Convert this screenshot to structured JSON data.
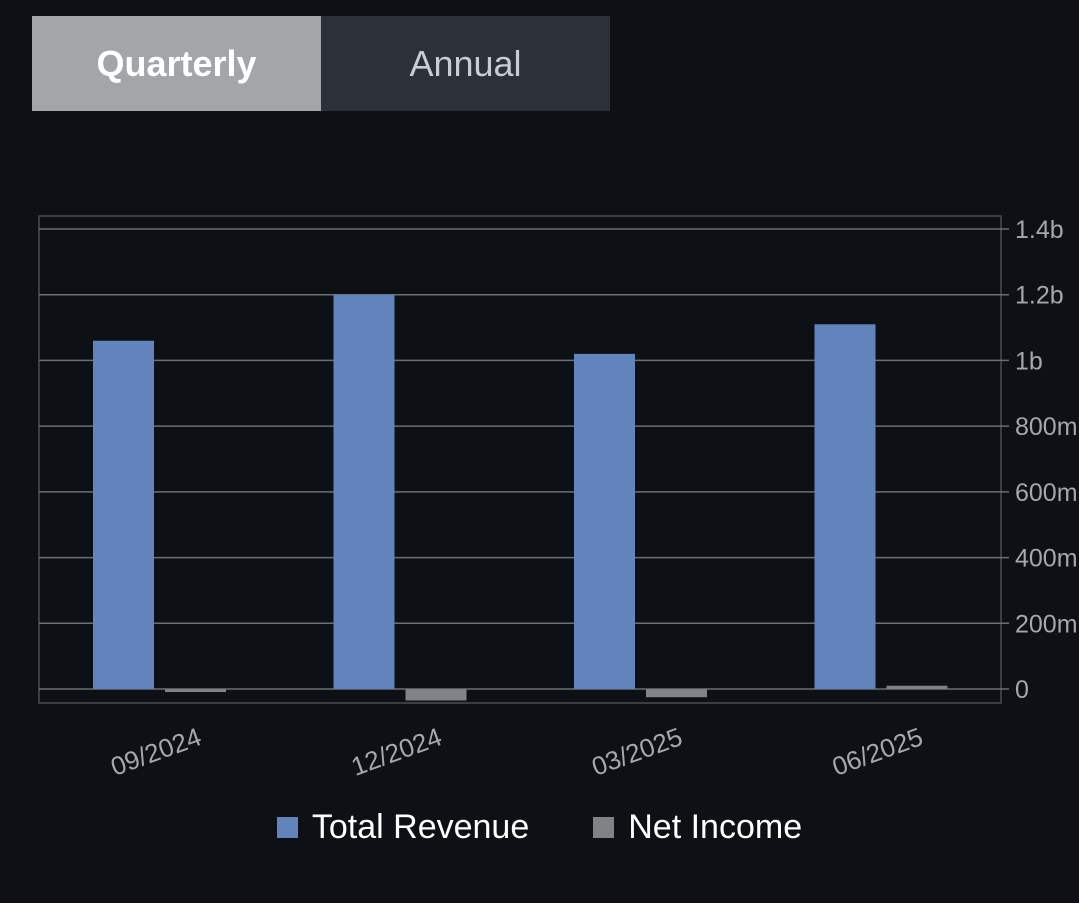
{
  "tabs": {
    "quarterly": "Quarterly",
    "annual": "Annual",
    "active": "quarterly"
  },
  "colors": {
    "revenue": "#6283bb",
    "net_income": "#808285",
    "grid": "#6b6e73",
    "axis_text": "#a4a7ab",
    "frame": "#3a3d42"
  },
  "chart_data": {
    "type": "bar",
    "categories": [
      "09/2024",
      "12/2024",
      "03/2025",
      "06/2025"
    ],
    "series": [
      {
        "name": "Total Revenue",
        "values": [
          1060000000,
          1200000000,
          1020000000,
          1110000000
        ]
      },
      {
        "name": "Net Income",
        "values": [
          -5000000,
          -35000000,
          -25000000,
          10000000
        ]
      }
    ],
    "y_ticks": [
      {
        "value": 1400000000,
        "label": "1.4b"
      },
      {
        "value": 1200000000,
        "label": "1.2b"
      },
      {
        "value": 1000000000,
        "label": "1b"
      },
      {
        "value": 800000000,
        "label": "800m"
      },
      {
        "value": 600000000,
        "label": "600m"
      },
      {
        "value": 400000000,
        "label": "400m"
      },
      {
        "value": 200000000,
        "label": "200m"
      },
      {
        "value": 0,
        "label": "0"
      }
    ],
    "ylim": [
      -40000000,
      1440000000
    ],
    "legend": [
      "Total Revenue",
      "Net Income"
    ],
    "legend_position": "bottom"
  }
}
